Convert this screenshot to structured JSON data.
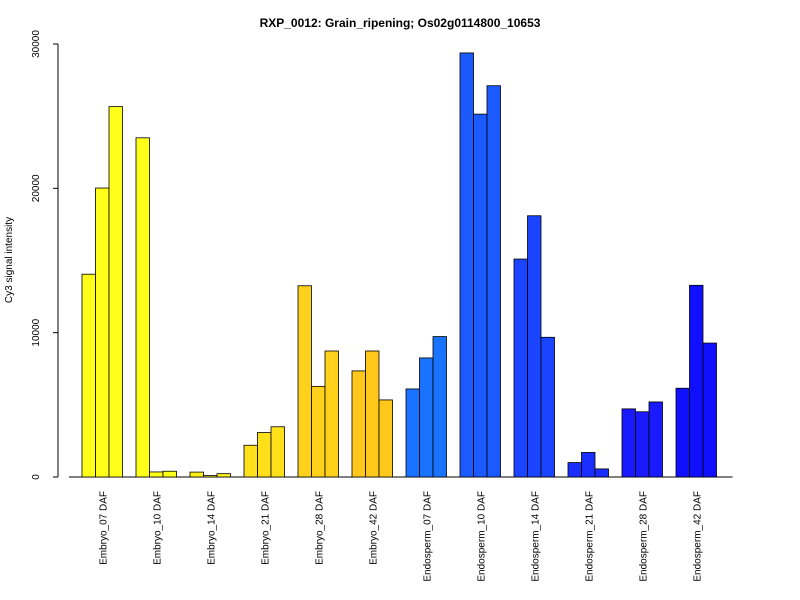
{
  "chart_data": {
    "type": "bar",
    "title": "RXP_0012: Grain_ripening; Os02g0114800_10653",
    "xlabel": "",
    "ylabel": "Cy3 signal intensity",
    "ylim": [
      0,
      30000
    ],
    "yticks": [
      0,
      10000,
      20000,
      30000
    ],
    "ytick_labels": [
      "0",
      "10000",
      "20000",
      "30000"
    ],
    "grid": false,
    "legend": "none",
    "categories": [
      "Embryo_07 DAF",
      "Embryo_10 DAF",
      "Embryo_14 DAF",
      "Embryo_21 DAF",
      "Embryo_28 DAF",
      "Embryo_42 DAF",
      "Endosperm_07 DAF",
      "Endosperm_10 DAF",
      "Endosperm_14 DAF",
      "Endosperm_21 DAF",
      "Endosperm_28 DAF",
      "Endosperm_42 DAF"
    ],
    "colors": [
      "#FFFF1A",
      "#FFFF1A",
      "#FFF01A",
      "#FFE01A",
      "#FFD11A",
      "#FFC81A",
      "#1A73FF",
      "#1A5AFF",
      "#1A44FF",
      "#1A2EFF",
      "#1A1AFF",
      "#1010FF"
    ],
    "values": [
      [
        14050,
        20020,
        25660
      ],
      [
        23500,
        350,
        400
      ],
      [
        340,
        100,
        230
      ],
      [
        2200,
        3080,
        3480
      ],
      [
        13250,
        6280,
        8730
      ],
      [
        7350,
        8730,
        5340
      ],
      [
        6100,
        8250,
        9730
      ],
      [
        29380,
        25140,
        27110
      ],
      [
        15100,
        18100,
        9680
      ],
      [
        1000,
        1700,
        560
      ],
      [
        4720,
        4520,
        5200
      ],
      [
        6150,
        13280,
        9280
      ]
    ]
  }
}
